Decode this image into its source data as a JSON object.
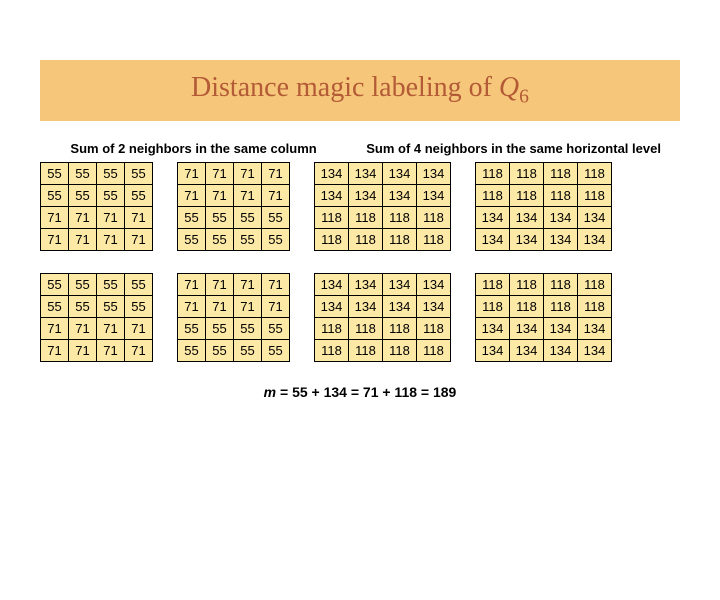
{
  "colors": {
    "title_bg": "#f6c77a",
    "title_fg": "#b35a36",
    "cell_bg": "#fde9a6",
    "text": "#000000"
  },
  "fontsizes": {
    "title": 28,
    "header": 13,
    "cell": 13,
    "footer": 14
  },
  "title_prefix": "Distance magic labeling of ",
  "title_var": "Q",
  "title_sub": "6",
  "header_left": "Sum of 2 neighbors in the same column",
  "header_right": "Sum of 4 neighbors in the same horizontal level",
  "grids": {
    "layout": "2 rows x 4 grids each; each grid is 4x4",
    "sets": [
      [
        [
          [
            55,
            55,
            55,
            55
          ],
          [
            55,
            55,
            55,
            55
          ],
          [
            71,
            71,
            71,
            71
          ],
          [
            71,
            71,
            71,
            71
          ]
        ],
        [
          [
            71,
            71,
            71,
            71
          ],
          [
            71,
            71,
            71,
            71
          ],
          [
            55,
            55,
            55,
            55
          ],
          [
            55,
            55,
            55,
            55
          ]
        ],
        [
          [
            134,
            134,
            134,
            134
          ],
          [
            134,
            134,
            134,
            134
          ],
          [
            118,
            118,
            118,
            118
          ],
          [
            118,
            118,
            118,
            118
          ]
        ],
        [
          [
            118,
            118,
            118,
            118
          ],
          [
            118,
            118,
            118,
            118
          ],
          [
            134,
            134,
            134,
            134
          ],
          [
            134,
            134,
            134,
            134
          ]
        ]
      ],
      [
        [
          [
            55,
            55,
            55,
            55
          ],
          [
            55,
            55,
            55,
            55
          ],
          [
            71,
            71,
            71,
            71
          ],
          [
            71,
            71,
            71,
            71
          ]
        ],
        [
          [
            71,
            71,
            71,
            71
          ],
          [
            71,
            71,
            71,
            71
          ],
          [
            55,
            55,
            55,
            55
          ],
          [
            55,
            55,
            55,
            55
          ]
        ],
        [
          [
            134,
            134,
            134,
            134
          ],
          [
            134,
            134,
            134,
            134
          ],
          [
            118,
            118,
            118,
            118
          ],
          [
            118,
            118,
            118,
            118
          ]
        ],
        [
          [
            118,
            118,
            118,
            118
          ],
          [
            118,
            118,
            118,
            118
          ],
          [
            134,
            134,
            134,
            134
          ],
          [
            134,
            134,
            134,
            134
          ]
        ]
      ]
    ]
  },
  "footer": {
    "m_label": "m",
    "equation": " = 55 + 134 = 71 + 118 = 189"
  }
}
